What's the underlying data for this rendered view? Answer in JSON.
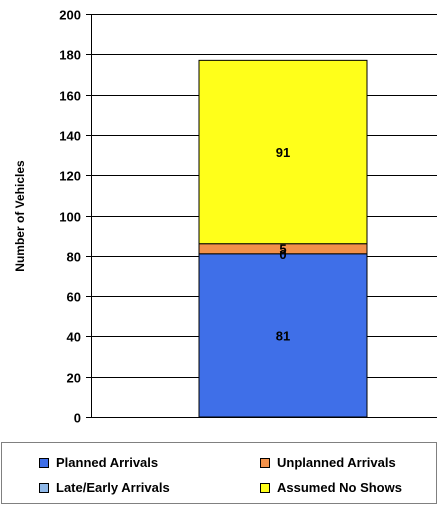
{
  "chart_data": {
    "type": "bar",
    "stacked": true,
    "categories": [
      ""
    ],
    "ylabel": "Number of Vehicles",
    "ylim": [
      0,
      200
    ],
    "yticks": [
      0,
      20,
      40,
      60,
      80,
      100,
      120,
      140,
      160,
      180,
      200
    ],
    "series": [
      {
        "name": "Planned Arrivals",
        "values": [
          81
        ],
        "color": "#3F6FE8",
        "data_label": "81"
      },
      {
        "name": "Late/Early Arrivals",
        "values": [
          0
        ],
        "color": "#8FB8E8",
        "data_label": "0"
      },
      {
        "name": "Unplanned Arrivals",
        "values": [
          5
        ],
        "color": "#F2914A",
        "data_label": "5"
      },
      {
        "name": "Assumed No Shows",
        "values": [
          91
        ],
        "color": "#FFFF1A",
        "data_label": "91"
      }
    ]
  },
  "legend": {
    "items": [
      {
        "label": "Planned Arrivals",
        "color": "#3F6FE8"
      },
      {
        "label": "Unplanned Arrivals",
        "color": "#F2914A"
      },
      {
        "label": "Late/Early Arrivals",
        "color": "#8FB8E8"
      },
      {
        "label": "Assumed No Shows",
        "color": "#FFFF1A"
      }
    ]
  }
}
